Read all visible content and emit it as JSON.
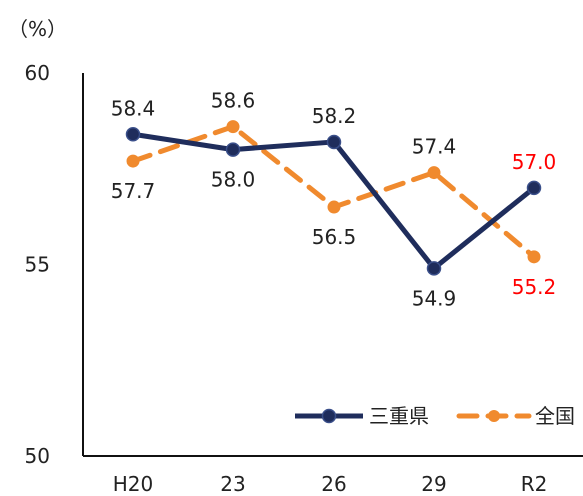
{
  "chart_data": {
    "type": "line",
    "y_unit": "（%）",
    "categories": [
      "H20",
      "23",
      "26",
      "29",
      "R2"
    ],
    "ylim": [
      50,
      60
    ],
    "yticks": [
      50,
      55,
      60
    ],
    "grid": false,
    "legend_position": "bottom-right",
    "series": [
      {
        "name": "三重県",
        "values": [
          58.4,
          58.0,
          58.2,
          54.9,
          57.0
        ],
        "labels": [
          "58.4",
          "58.0",
          "58.2",
          "54.9",
          "57.0"
        ],
        "label_positions": [
          "above",
          "below",
          "above",
          "below",
          "above"
        ],
        "label_colors": [
          "#222222",
          "#222222",
          "#222222",
          "#222222",
          "#ff0000"
        ],
        "color": "#1f2d5c",
        "style": "solid"
      },
      {
        "name": "全国",
        "values": [
          57.7,
          58.6,
          56.5,
          57.4,
          55.2
        ],
        "labels": [
          "57.7",
          "58.6",
          "56.5",
          "57.4",
          "55.2"
        ],
        "label_positions": [
          "below",
          "above",
          "below",
          "above",
          "below"
        ],
        "label_colors": [
          "#222222",
          "#222222",
          "#222222",
          "#222222",
          "#ff0000"
        ],
        "color": "#f08a2e",
        "style": "dashed"
      }
    ]
  }
}
